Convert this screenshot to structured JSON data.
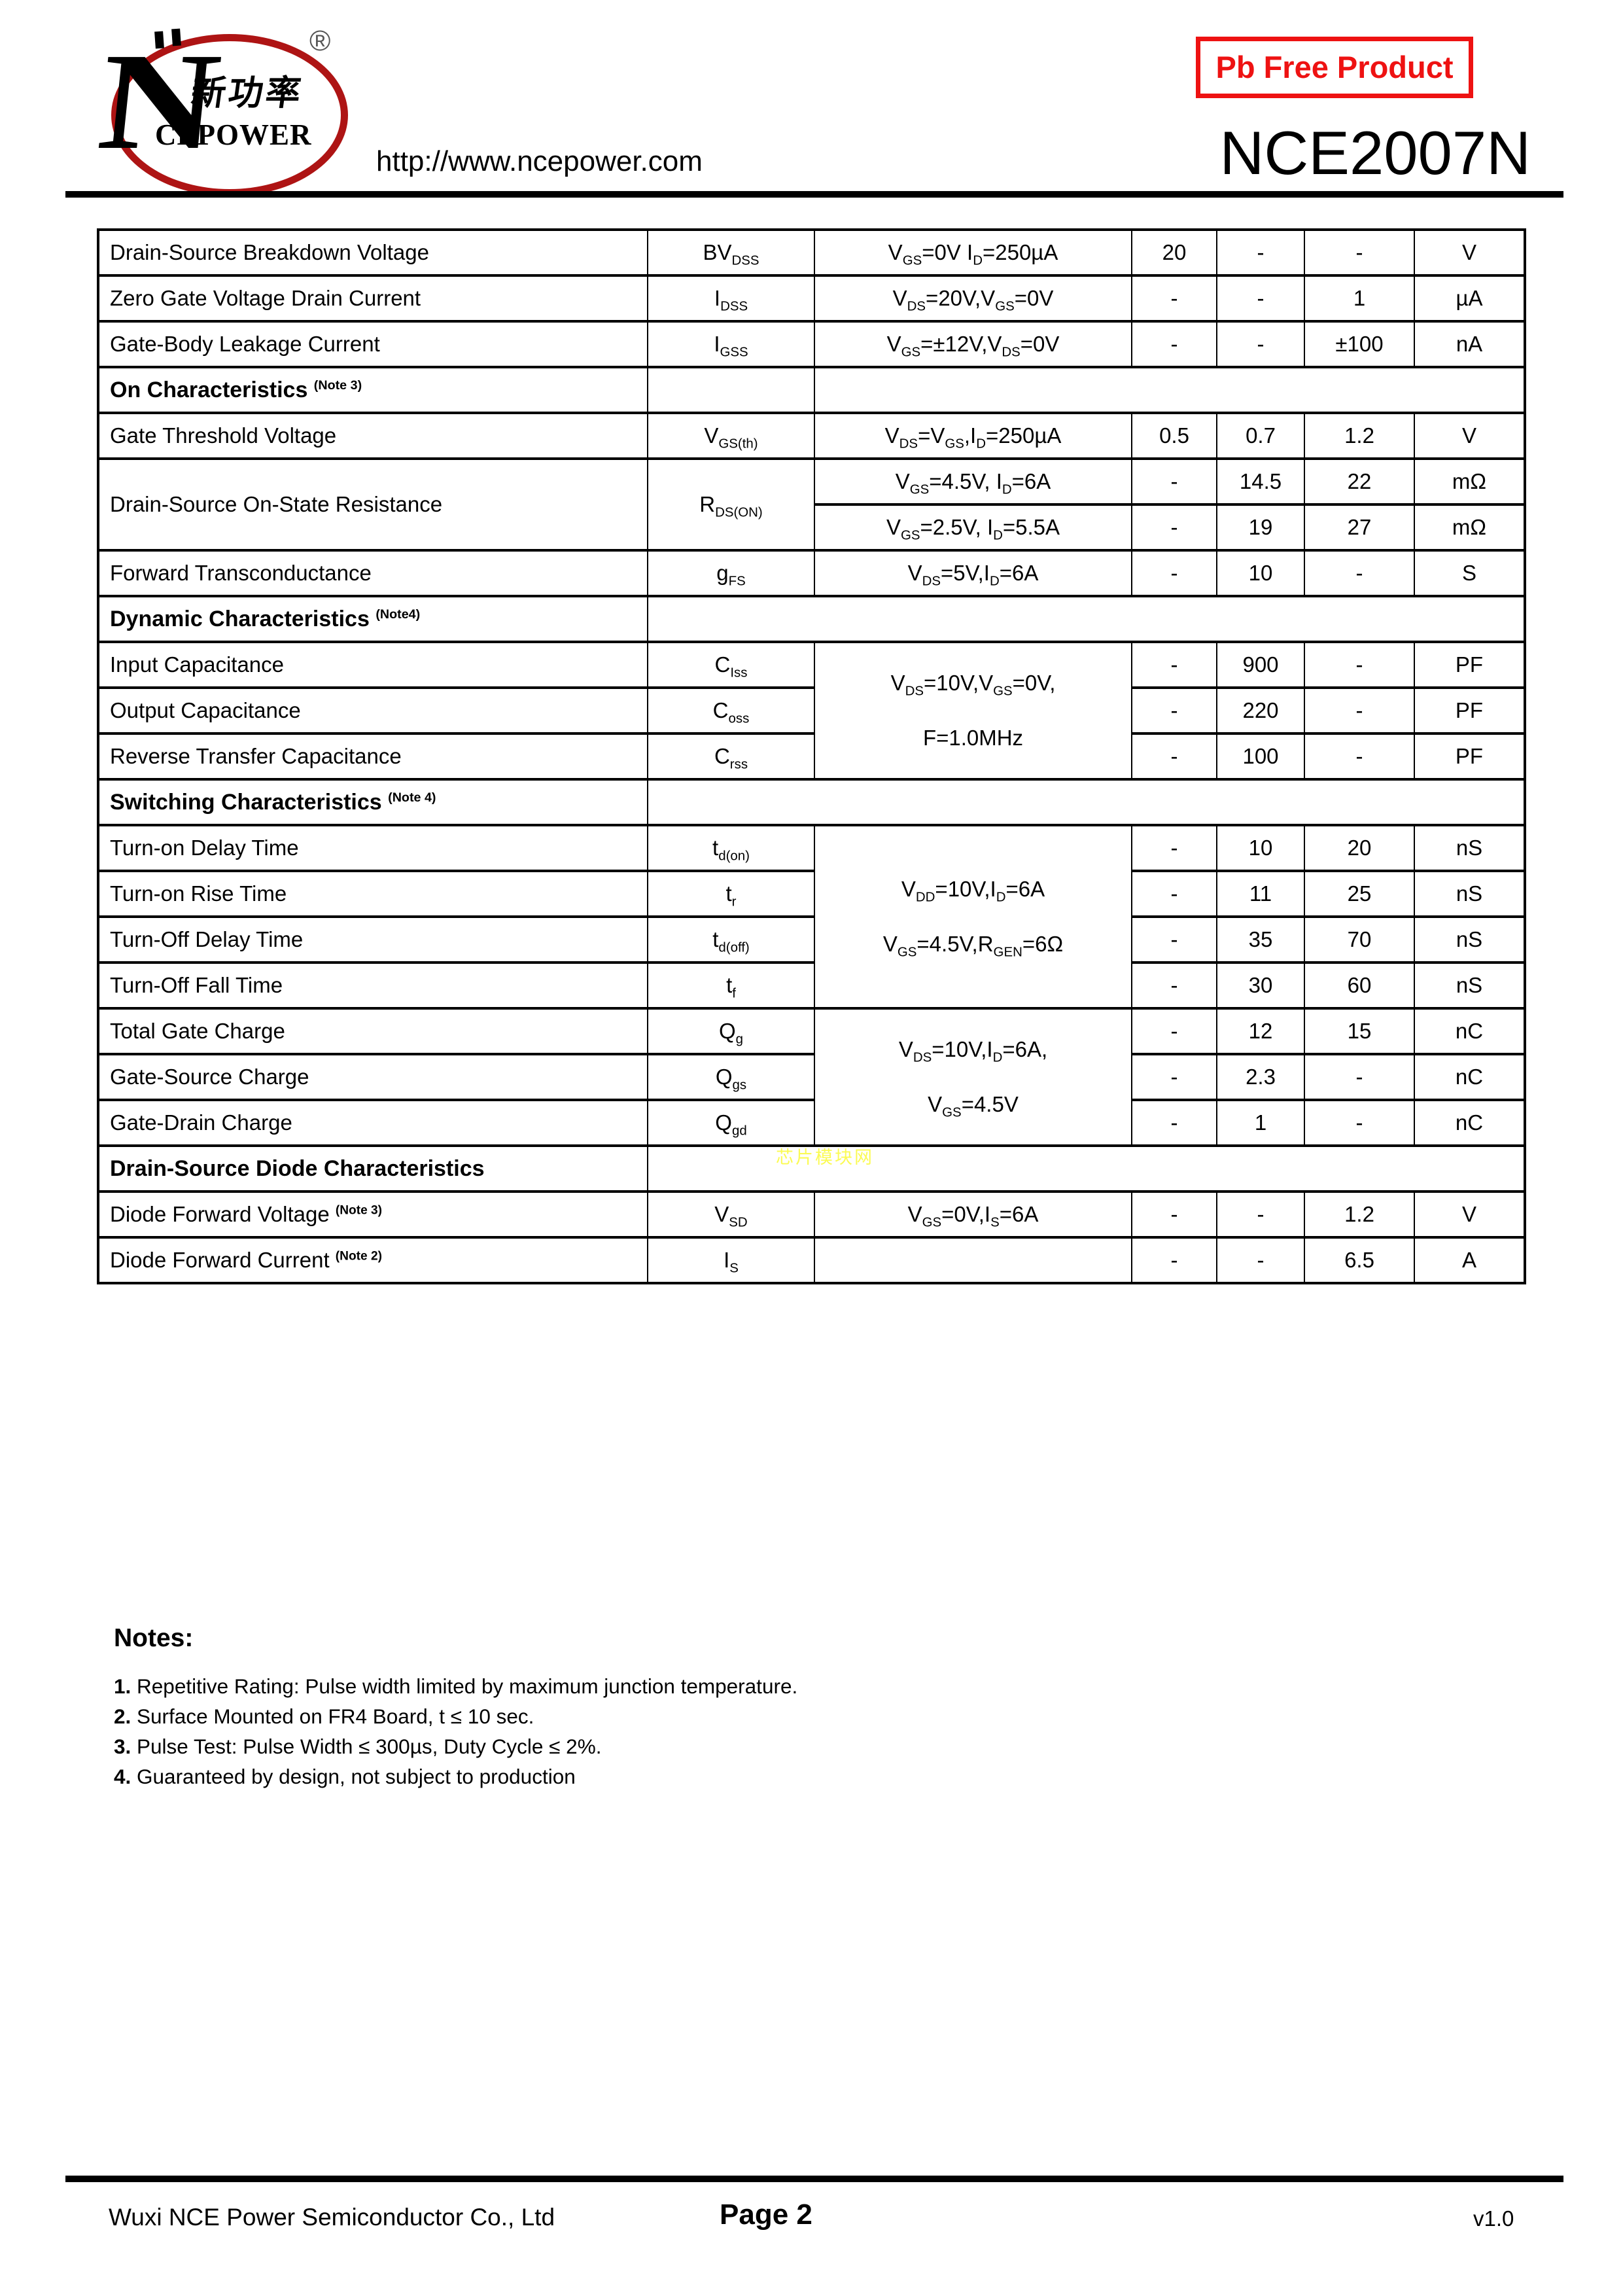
{
  "header": {
    "logo": {
      "n_glyph": "N",
      "chinese_text": "新功率",
      "latin_text": "CEPOWER",
      "registered_mark": "®"
    },
    "url": "http://www.ncepower.com",
    "pb_free_badge": "Pb Free Product",
    "part_number": "NCE2007N"
  },
  "colors": {
    "logo_red": "#ae1414",
    "badge_red": "#ee1212",
    "watermark_yellow": "#fbfb55"
  },
  "watermark": "芯片模块网",
  "table": {
    "rows": [
      {
        "cells": [
          {
            "t": "Drain-Source Breakdown Voltage",
            "k": "p"
          },
          {
            "t": "BV~DSS~",
            "k": "s"
          },
          {
            "t": "V~GS~=0V I~D~=250µA",
            "k": "c"
          },
          {
            "t": "20",
            "k": "v"
          },
          {
            "t": "-",
            "k": "v"
          },
          {
            "t": "-",
            "k": "v"
          },
          {
            "t": "V",
            "k": "u"
          }
        ]
      },
      {
        "cells": [
          {
            "t": "Zero Gate Voltage Drain Current",
            "k": "p"
          },
          {
            "t": "I~DSS~",
            "k": "s"
          },
          {
            "t": "V~DS~=20V,V~GS~=0V",
            "k": "c"
          },
          {
            "t": "-",
            "k": "v"
          },
          {
            "t": "-",
            "k": "v"
          },
          {
            "t": "1",
            "k": "v"
          },
          {
            "t": "µA",
            "k": "u"
          }
        ]
      },
      {
        "cells": [
          {
            "t": "Gate-Body Leakage Current",
            "k": "p"
          },
          {
            "t": "I~GSS~",
            "k": "s"
          },
          {
            "t": "V~GS~=±12V,V~DS~=0V",
            "k": "c"
          },
          {
            "t": "-",
            "k": "v"
          },
          {
            "t": "-",
            "k": "v"
          },
          {
            "t": "±100",
            "k": "v"
          },
          {
            "t": "nA",
            "k": "u"
          }
        ]
      },
      {
        "section": true,
        "cells": [
          {
            "t": "On Characteristics ^(Note 3)^",
            "k": "t"
          },
          {
            "t": "",
            "k": "s"
          },
          {
            "t": "",
            "k": "x",
            "cs": 5
          }
        ]
      },
      {
        "cells": [
          {
            "t": "Gate Threshold Voltage",
            "k": "p"
          },
          {
            "t": "V~GS(th)~",
            "k": "s"
          },
          {
            "t": "V~DS~=V~GS~,I~D~=250µA",
            "k": "c"
          },
          {
            "t": "0.5",
            "k": "v"
          },
          {
            "t": "0.7",
            "k": "v"
          },
          {
            "t": "1.2",
            "k": "v"
          },
          {
            "t": "V",
            "k": "u"
          }
        ]
      },
      {
        "cells": [
          {
            "t": "Drain-Source On-State Resistance",
            "k": "p",
            "rs": 2
          },
          {
            "t": "R~DS(ON)~",
            "k": "s",
            "rs": 2
          },
          {
            "t": "V~GS~=4.5V, I~D~=6A",
            "k": "c"
          },
          {
            "t": "-",
            "k": "v"
          },
          {
            "t": "14.5",
            "k": "v"
          },
          {
            "t": "22",
            "k": "v"
          },
          {
            "t": "mΩ",
            "k": "u"
          }
        ]
      },
      {
        "cells": [
          {
            "t": "V~GS~=2.5V, I~D~=5.5A",
            "k": "c"
          },
          {
            "t": "-",
            "k": "v"
          },
          {
            "t": "19",
            "k": "v"
          },
          {
            "t": "27",
            "k": "v"
          },
          {
            "t": "mΩ",
            "k": "u"
          }
        ]
      },
      {
        "cells": [
          {
            "t": "Forward Transconductance",
            "k": "p"
          },
          {
            "t": "g~FS~",
            "k": "s"
          },
          {
            "t": "V~DS~=5V,I~D~=6A",
            "k": "c"
          },
          {
            "t": "-",
            "k": "v"
          },
          {
            "t": "10",
            "k": "v"
          },
          {
            "t": "-",
            "k": "v"
          },
          {
            "t": "S",
            "k": "u"
          }
        ]
      },
      {
        "section": true,
        "cells": [
          {
            "t": "Dynamic Characteristics ^(Note4)^",
            "k": "t"
          },
          {
            "t": "",
            "k": "x",
            "cs": 6
          }
        ]
      },
      {
        "cells": [
          {
            "t": "Input Capacitance",
            "k": "p"
          },
          {
            "t": "C~Iss~",
            "k": "s"
          },
          {
            "t": "V~DS~=10V,V~GS~=0V,\nF=1.0MHz",
            "k": "c",
            "rs": 3
          },
          {
            "t": "-",
            "k": "v"
          },
          {
            "t": "900",
            "k": "v"
          },
          {
            "t": "-",
            "k": "v"
          },
          {
            "t": "PF",
            "k": "u"
          }
        ]
      },
      {
        "cells": [
          {
            "t": "Output Capacitance",
            "k": "p"
          },
          {
            "t": "C~oss~",
            "k": "s"
          },
          {
            "t": "-",
            "k": "v"
          },
          {
            "t": "220",
            "k": "v"
          },
          {
            "t": "-",
            "k": "v"
          },
          {
            "t": "PF",
            "k": "u"
          }
        ]
      },
      {
        "cells": [
          {
            "t": "Reverse Transfer Capacitance",
            "k": "p"
          },
          {
            "t": "C~rss~",
            "k": "s"
          },
          {
            "t": "-",
            "k": "v"
          },
          {
            "t": "100",
            "k": "v"
          },
          {
            "t": "-",
            "k": "v"
          },
          {
            "t": "PF",
            "k": "u"
          }
        ]
      },
      {
        "section": true,
        "cells": [
          {
            "t": "Switching Characteristics ^(Note 4)^",
            "k": "t"
          },
          {
            "t": "",
            "k": "x",
            "cs": 6
          }
        ]
      },
      {
        "cells": [
          {
            "t": "Turn-on Delay Time",
            "k": "p"
          },
          {
            "t": "t~d(on)~",
            "k": "s"
          },
          {
            "t": "V~DD~=10V,I~D~=6A\nV~GS~=4.5V,R~GEN~=6Ω",
            "k": "c",
            "rs": 4
          },
          {
            "t": "-",
            "k": "v"
          },
          {
            "t": "10",
            "k": "v"
          },
          {
            "t": "20",
            "k": "v"
          },
          {
            "t": "nS",
            "k": "u"
          }
        ]
      },
      {
        "cells": [
          {
            "t": "Turn-on Rise Time",
            "k": "p"
          },
          {
            "t": "t~r~",
            "k": "s"
          },
          {
            "t": "-",
            "k": "v"
          },
          {
            "t": "11",
            "k": "v"
          },
          {
            "t": "25",
            "k": "v"
          },
          {
            "t": "nS",
            "k": "u"
          }
        ]
      },
      {
        "cells": [
          {
            "t": "Turn-Off Delay Time",
            "k": "p"
          },
          {
            "t": "t~d(off)~",
            "k": "s"
          },
          {
            "t": "-",
            "k": "v"
          },
          {
            "t": "35",
            "k": "v"
          },
          {
            "t": "70",
            "k": "v"
          },
          {
            "t": "nS",
            "k": "u"
          }
        ]
      },
      {
        "cells": [
          {
            "t": "Turn-Off Fall Time",
            "k": "p"
          },
          {
            "t": "t~f~",
            "k": "s"
          },
          {
            "t": "-",
            "k": "v"
          },
          {
            "t": "30",
            "k": "v"
          },
          {
            "t": "60",
            "k": "v"
          },
          {
            "t": "nS",
            "k": "u"
          }
        ]
      },
      {
        "cells": [
          {
            "t": "Total Gate Charge",
            "k": "p"
          },
          {
            "t": "Q~g~",
            "k": "s"
          },
          {
            "t": "V~DS~=10V,I~D~=6A,\nV~GS~=4.5V",
            "k": "c",
            "rs": 3
          },
          {
            "t": "-",
            "k": "v"
          },
          {
            "t": "12",
            "k": "v"
          },
          {
            "t": "15",
            "k": "v"
          },
          {
            "t": "nC",
            "k": "u"
          }
        ]
      },
      {
        "cells": [
          {
            "t": "Gate-Source Charge",
            "k": "p"
          },
          {
            "t": "Q~gs~",
            "k": "s"
          },
          {
            "t": "-",
            "k": "v"
          },
          {
            "t": "2.3",
            "k": "v"
          },
          {
            "t": "-",
            "k": "v"
          },
          {
            "t": "nC",
            "k": "u"
          }
        ]
      },
      {
        "cells": [
          {
            "t": "Gate-Drain Charge",
            "k": "p"
          },
          {
            "t": "Q~gd~",
            "k": "s"
          },
          {
            "t": "-",
            "k": "v"
          },
          {
            "t": "1",
            "k": "v"
          },
          {
            "t": "-",
            "k": "v"
          },
          {
            "t": "nC",
            "k": "u"
          }
        ]
      },
      {
        "section": true,
        "cells": [
          {
            "t": "Drain-Source Diode Characteristics",
            "k": "t"
          },
          {
            "t": "",
            "k": "x",
            "cs": 6
          }
        ]
      },
      {
        "cells": [
          {
            "t": "Diode Forward Voltage ^(Note 3)^",
            "k": "p"
          },
          {
            "t": "V~SD~",
            "k": "s"
          },
          {
            "t": "V~GS~=0V,I~S~=6A",
            "k": "c"
          },
          {
            "t": "-",
            "k": "v"
          },
          {
            "t": "-",
            "k": "v"
          },
          {
            "t": "1.2",
            "k": "v"
          },
          {
            "t": "V",
            "k": "u"
          }
        ]
      },
      {
        "cells": [
          {
            "t": "Diode Forward Current ^(Note 2)^",
            "k": "p"
          },
          {
            "t": "I~S~",
            "k": "s"
          },
          {
            "t": "",
            "k": "c"
          },
          {
            "t": "-",
            "k": "v"
          },
          {
            "t": "-",
            "k": "v"
          },
          {
            "t": "6.5",
            "k": "v"
          },
          {
            "t": "A",
            "k": "u"
          }
        ]
      }
    ]
  },
  "notes": {
    "title": "Notes:",
    "items": [
      {
        "num": "1.",
        "text": "Repetitive Rating: Pulse width limited by maximum junction temperature."
      },
      {
        "num": "2.",
        "text": "Surface Mounted on FR4 Board, t ≤ 10 sec."
      },
      {
        "num": "3.",
        "text": "Pulse Test: Pulse Width ≤ 300µs, Duty Cycle ≤ 2%."
      },
      {
        "num": "4.",
        "text": "Guaranteed by design, not subject to production"
      }
    ]
  },
  "footer": {
    "company": "Wuxi NCE Power Semiconductor Co., Ltd",
    "page": "Page 2",
    "version": "v1.0"
  }
}
